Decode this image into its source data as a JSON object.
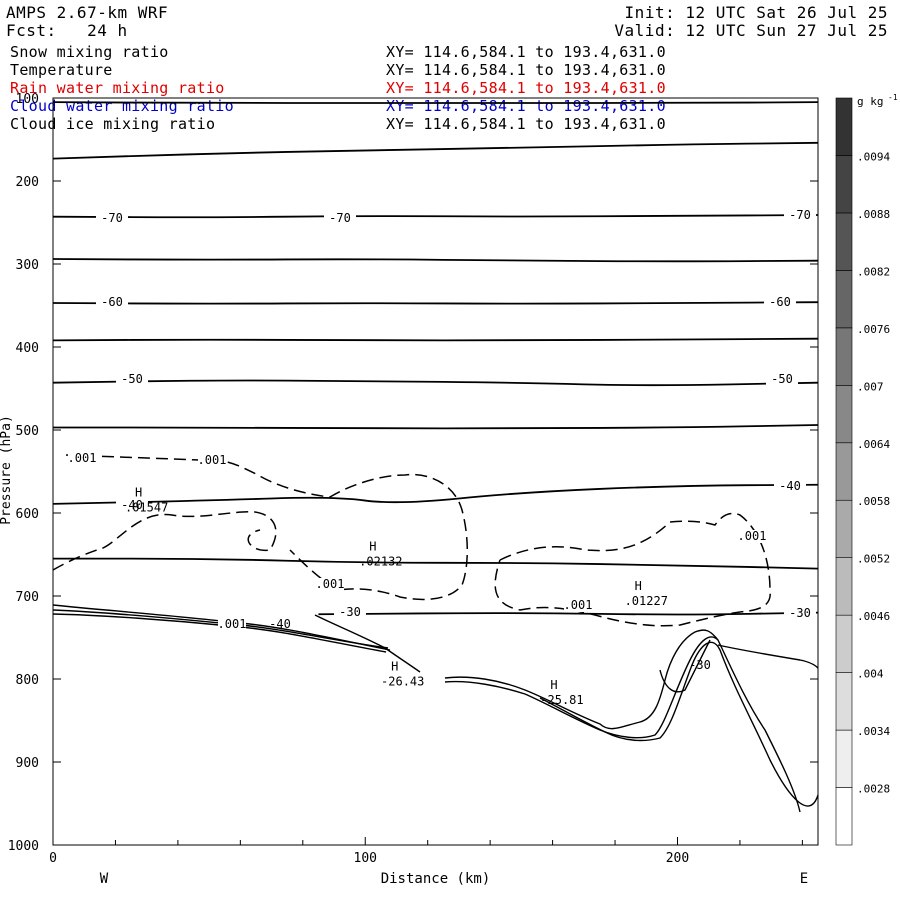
{
  "header": {
    "model": "AMPS 2.67-km WRF",
    "forecast": "Fcst:   24 h",
    "init": "Init: 12 UTC Sat 26 Jul 25",
    "valid": "Valid: 12 UTC Sun 27 Jul 25"
  },
  "fields": [
    {
      "name": "Snow mixing ratio",
      "xy": "XY= 114.6,584.1 to 193.4,631.0",
      "color": "#000000"
    },
    {
      "name": "Temperature",
      "xy": "XY= 114.6,584.1 to 193.4,631.0",
      "color": "#000000"
    },
    {
      "name": "Rain water mixing ratio",
      "xy": "XY= 114.6,584.1 to 193.4,631.0",
      "color": "#e00000"
    },
    {
      "name": "Cloud water mixing ratio",
      "xy": "XY= 114.6,584.1 to 193.4,631.0",
      "color": "#0000cc"
    },
    {
      "name": "Cloud ice mixing ratio",
      "xy": "XY= 114.6,584.1 to 193.4,631.0",
      "color": "#000000"
    }
  ],
  "chart_data": {
    "type": "contour-cross-section",
    "xlabel": "Distance (km)",
    "ylabel": "Pressure (hPa)",
    "xlim": [
      0,
      245
    ],
    "ylim": [
      1000,
      100
    ],
    "xticks": [
      0,
      100,
      200
    ],
    "yticks": [
      100,
      200,
      300,
      400,
      500,
      600,
      700,
      800,
      900,
      1000
    ],
    "x_end_labels": {
      "left": "W",
      "right": "E"
    },
    "colorbar": {
      "unit": "g kg",
      "unit_exponent": "-1",
      "labels": [
        ".0028",
        ".0034",
        ".004",
        ".0046",
        ".0052",
        ".0058",
        ".0064",
        ".007",
        ".0076",
        ".0082",
        ".0088",
        ".0094"
      ],
      "color_low": "#ffffff",
      "color_high": "#333333"
    },
    "temperature_isotherms": [
      {
        "label": "-70",
        "points": [
          [
            0,
            243
          ],
          [
            50,
            244
          ],
          [
            100,
            242
          ],
          [
            150,
            243
          ],
          [
            200,
            242
          ],
          [
            245,
            241
          ]
        ]
      },
      {
        "label": "",
        "points": [
          [
            0,
            294
          ],
          [
            50,
            295
          ],
          [
            100,
            294
          ],
          [
            150,
            296
          ],
          [
            200,
            297
          ],
          [
            245,
            296
          ]
        ]
      },
      {
        "label": "-60",
        "points": [
          [
            0,
            347
          ],
          [
            50,
            348
          ],
          [
            100,
            347
          ],
          [
            150,
            348
          ],
          [
            200,
            347
          ],
          [
            245,
            346
          ]
        ]
      },
      {
        "label": "",
        "points": [
          [
            0,
            392
          ],
          [
            50,
            391
          ],
          [
            100,
            392
          ],
          [
            150,
            392
          ],
          [
            200,
            391
          ],
          [
            245,
            390
          ]
        ]
      },
      {
        "label": "-50",
        "points": [
          [
            0,
            443
          ],
          [
            50,
            440
          ],
          [
            100,
            441
          ],
          [
            150,
            443
          ],
          [
            190,
            447
          ],
          [
            245,
            443
          ]
        ]
      },
      {
        "label": "",
        "points": [
          [
            0,
            497
          ],
          [
            50,
            497
          ],
          [
            100,
            498
          ],
          [
            150,
            498
          ],
          [
            200,
            497
          ],
          [
            245,
            494
          ]
        ]
      },
      {
        "label": "-40",
        "points": [
          [
            0,
            589
          ],
          [
            50,
            585
          ],
          [
            90,
            580
          ],
          [
            110,
            590
          ],
          [
            150,
            575
          ],
          [
            200,
            567
          ],
          [
            245,
            566
          ]
        ]
      },
      {
        "label": "",
        "points": [
          [
            0,
            655
          ],
          [
            50,
            655
          ],
          [
            100,
            660
          ],
          [
            150,
            660
          ],
          [
            200,
            663
          ],
          [
            245,
            667
          ]
        ]
      },
      {
        "label": "-30",
        "points": [
          [
            85,
            722
          ],
          [
            150,
            720
          ],
          [
            200,
            723
          ],
          [
            245,
            720
          ]
        ]
      }
    ],
    "upper_isotherms": [
      {
        "label": "",
        "points": [
          [
            0,
            105
          ],
          [
            50,
            106
          ],
          [
            100,
            106
          ],
          [
            150,
            106
          ],
          [
            200,
            106
          ],
          [
            245,
            105
          ]
        ]
      },
      {
        "label": "",
        "points": [
          [
            0,
            173
          ],
          [
            50,
            167
          ],
          [
            100,
            163
          ],
          [
            150,
            160
          ],
          [
            200,
            156
          ],
          [
            245,
            154
          ]
        ]
      }
    ],
    "mixing_ratio_labels": [
      ".001",
      ".001",
      ".001",
      ".001",
      ".001",
      ".001"
    ],
    "maxima": [
      {
        "symbol": "H",
        "value": ".01547",
        "x": 30,
        "p": 580
      },
      {
        "symbol": "H",
        "value": ".02132",
        "x": 105,
        "p": 645
      },
      {
        "symbol": "H",
        "value": ".01227",
        "x": 190,
        "p": 693
      },
      {
        "symbol": "H",
        "value": "-26.43",
        "x": 112,
        "p": 790
      },
      {
        "symbol": "H",
        "value": "-25.81",
        "x": 163,
        "p": 812
      }
    ],
    "terrain_label": "-30"
  }
}
